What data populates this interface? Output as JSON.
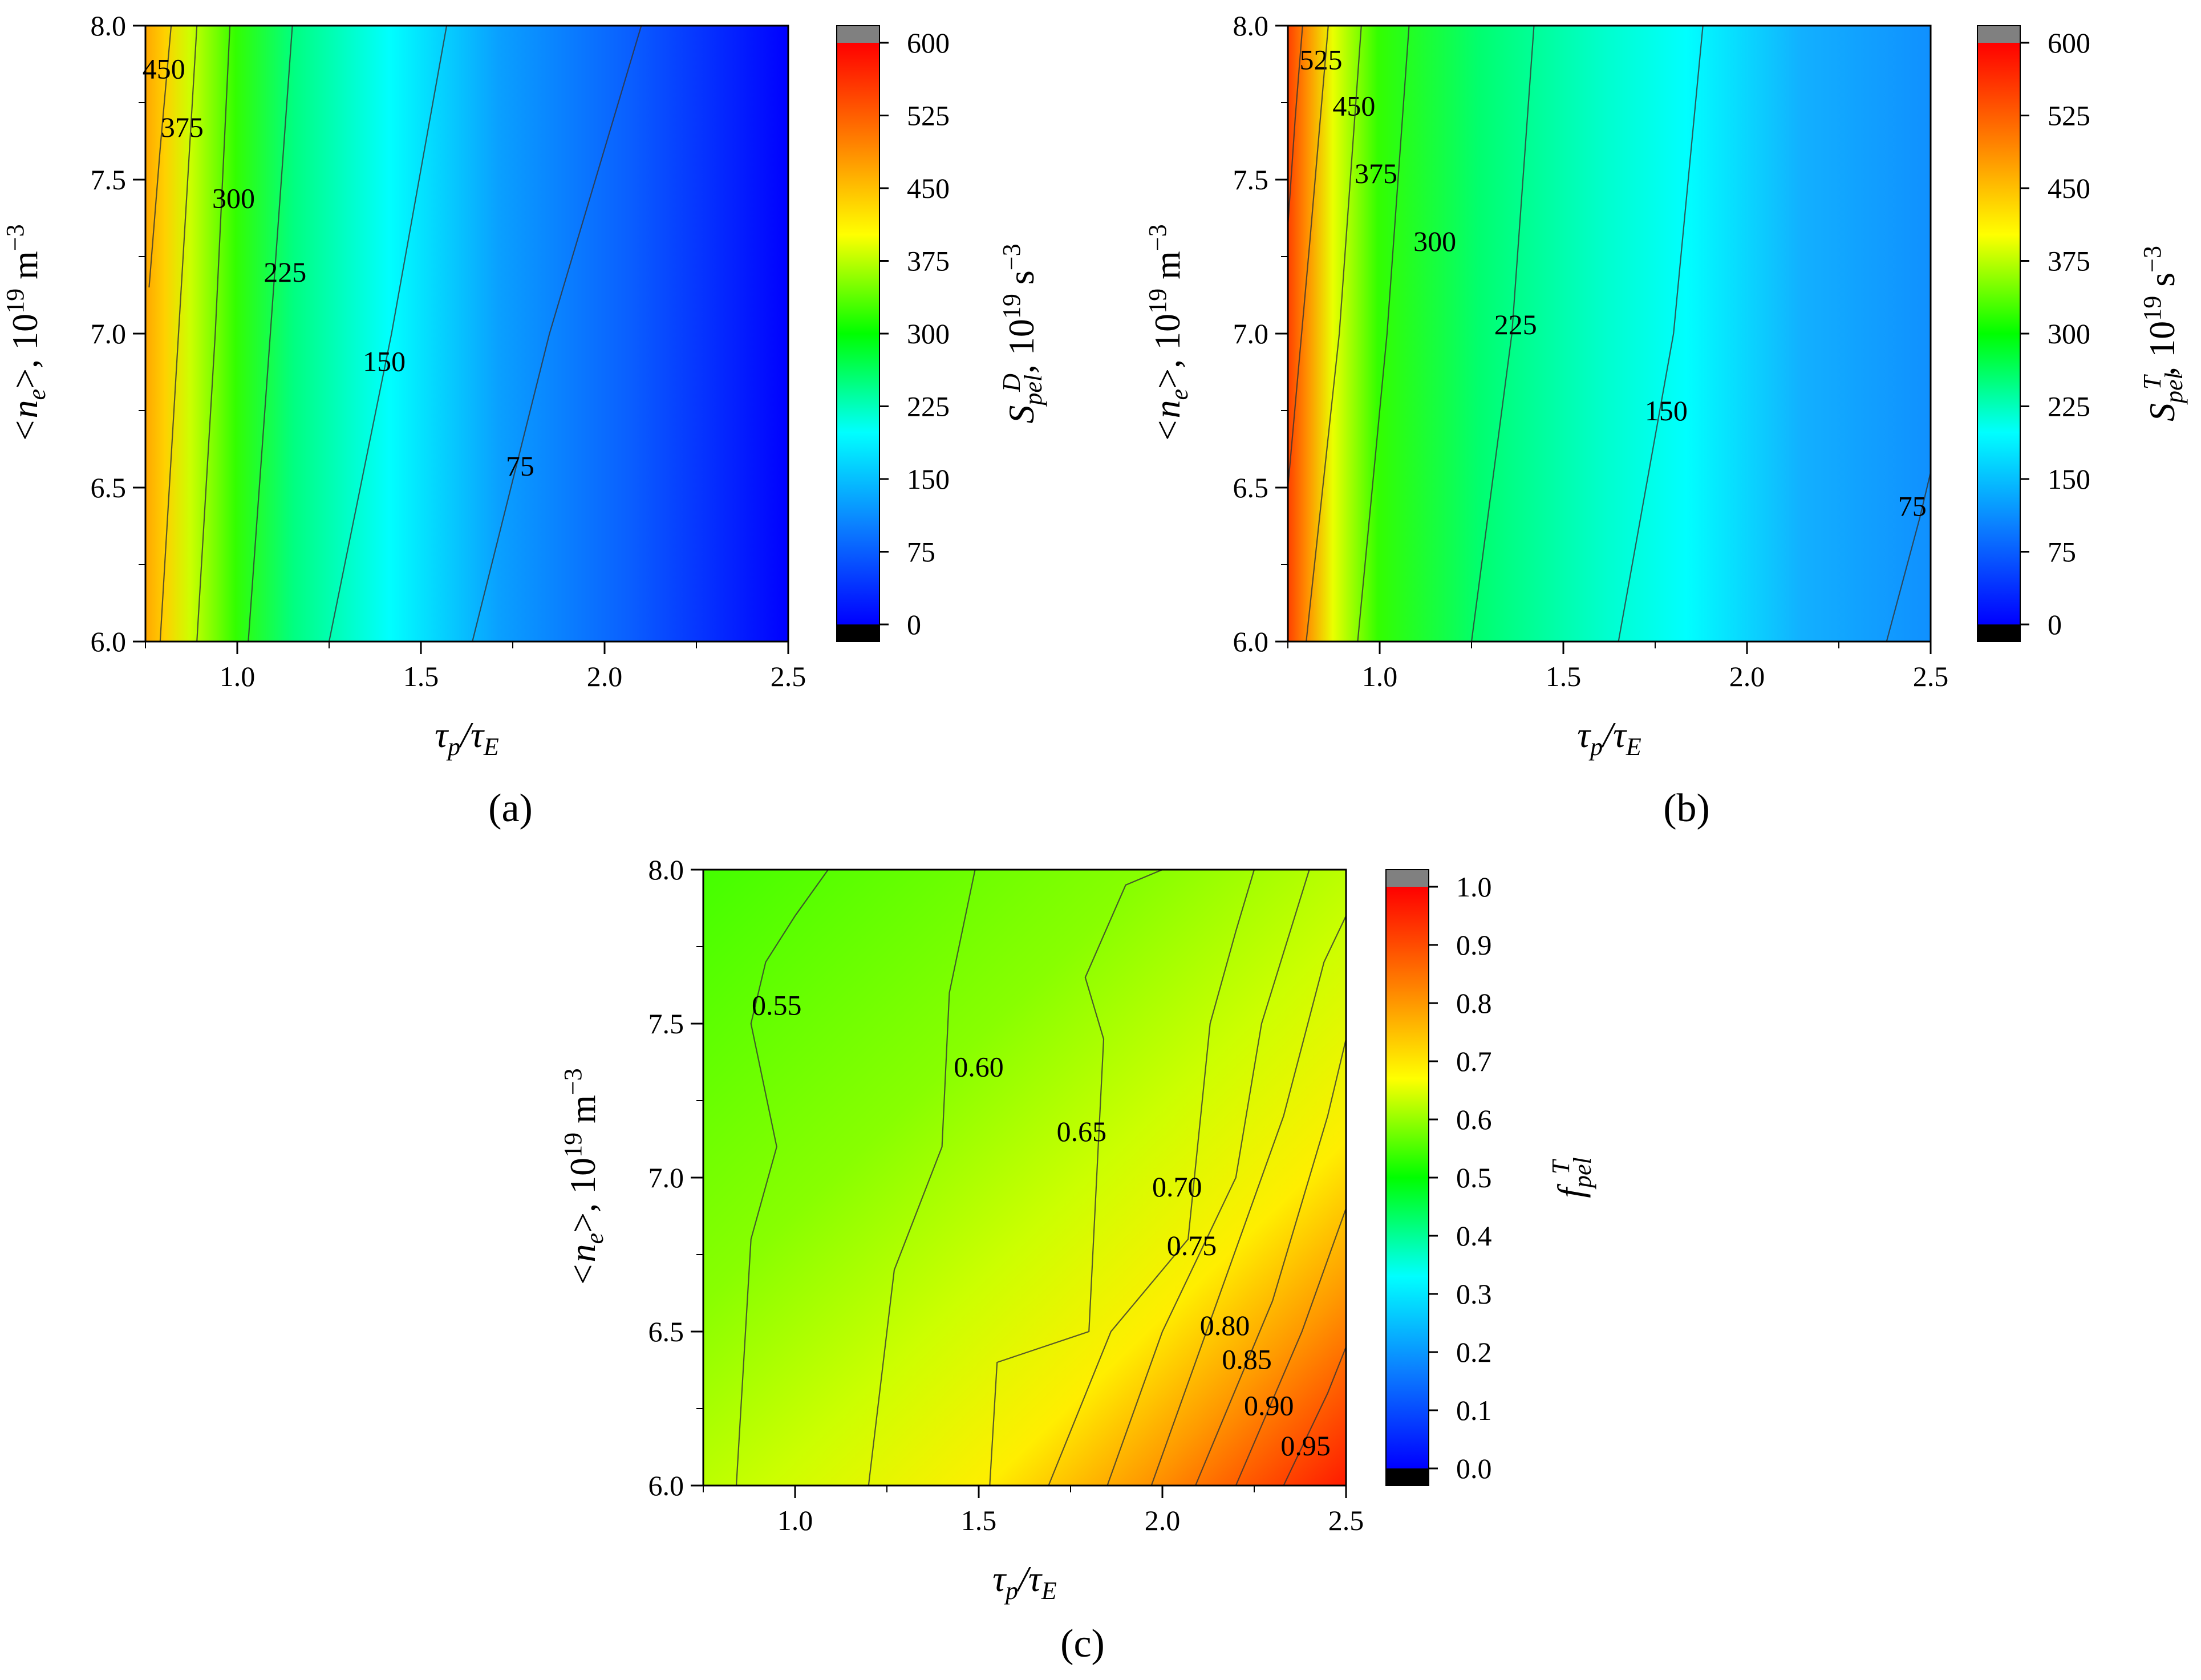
{
  "figure": {
    "panels": [
      "(a)",
      "(b)",
      "(c)"
    ]
  },
  "colormap": [
    "#0000ff",
    "#0b80ff",
    "#00ffff",
    "#00ff00",
    "#ffff00",
    "#ff8000",
    "#ff0000"
  ],
  "chart_data": [
    {
      "panel": "(a)",
      "type": "heatmap",
      "subtype": "filled contour",
      "xlabel_parts": [
        "τ",
        "p",
        "/τ",
        "E"
      ],
      "ylabel_parts": [
        "<n",
        "e",
        ">, 10",
        "19",
        " m",
        "−3"
      ],
      "colorbar_label_parts": [
        "S",
        "pel",
        "D",
        ", 10",
        "19",
        " s",
        "−3"
      ],
      "xlim": [
        0.75,
        2.5
      ],
      "ylim": [
        6.0,
        8.0
      ],
      "x_ticks": [
        "1.0",
        "1.5",
        "2.0",
        "2.5"
      ],
      "x_tick_values": [
        1.0,
        1.5,
        2.0,
        2.5
      ],
      "y_ticks": [
        "6.0",
        "6.5",
        "7.0",
        "7.5",
        "8.0"
      ],
      "y_tick_values": [
        6.0,
        6.5,
        7.0,
        7.5,
        8.0
      ],
      "colorbar_range": [
        0,
        600
      ],
      "colorbar_ticks": [
        "0",
        "75",
        "150",
        "225",
        "300",
        "375",
        "450",
        "525",
        "600"
      ],
      "colorbar_tick_values": [
        0,
        75,
        150,
        225,
        300,
        375,
        450,
        525,
        600
      ],
      "contours": [
        {
          "level": 450,
          "label": "450",
          "points": [
            [
              0.76,
              7.15
            ],
            [
              0.79,
              7.6
            ],
            [
              0.82,
              8.0
            ]
          ],
          "label_at": [
            0.8,
            7.86
          ]
        },
        {
          "level": 375,
          "label": "375",
          "points": [
            [
              0.79,
              6.0
            ],
            [
              0.84,
              7.0
            ],
            [
              0.89,
              8.0
            ]
          ],
          "label_at": [
            0.85,
            7.67
          ]
        },
        {
          "level": 300,
          "label": "300",
          "points": [
            [
              0.89,
              6.0
            ],
            [
              0.94,
              7.0
            ],
            [
              0.98,
              8.0
            ]
          ],
          "label_at": [
            0.99,
            7.44
          ]
        },
        {
          "level": 225,
          "label": "225",
          "points": [
            [
              1.03,
              6.0
            ],
            [
              1.09,
              7.0
            ],
            [
              1.15,
              8.0
            ]
          ],
          "label_at": [
            1.13,
            7.2
          ]
        },
        {
          "level": 150,
          "label": "150",
          "points": [
            [
              1.25,
              6.0
            ],
            [
              1.42,
              7.0
            ],
            [
              1.57,
              8.0
            ]
          ],
          "label_at": [
            1.4,
            6.91
          ]
        },
        {
          "level": 75,
          "label": "75",
          "points": [
            [
              1.64,
              6.0
            ],
            [
              1.85,
              7.0
            ],
            [
              2.1,
              8.0
            ]
          ],
          "label_at": [
            1.77,
            6.57
          ]
        }
      ]
    },
    {
      "panel": "(b)",
      "type": "heatmap",
      "subtype": "filled contour",
      "xlabel_parts": [
        "τ",
        "p",
        "/τ",
        "E"
      ],
      "ylabel_parts": [
        "<n",
        "e",
        ">, 10",
        "19",
        " m",
        "−3"
      ],
      "colorbar_label_parts": [
        "S",
        "pel",
        "T",
        ", 10",
        "19",
        " s",
        "−3"
      ],
      "xlim": [
        0.75,
        2.5
      ],
      "ylim": [
        6.0,
        8.0
      ],
      "x_ticks": [
        "1.0",
        "1.5",
        "2.0",
        "2.5"
      ],
      "x_tick_values": [
        1.0,
        1.5,
        2.0,
        2.5
      ],
      "y_ticks": [
        "6.0",
        "6.5",
        "7.0",
        "7.5",
        "8.0"
      ],
      "y_tick_values": [
        6.0,
        6.5,
        7.0,
        7.5,
        8.0
      ],
      "colorbar_range": [
        0,
        600
      ],
      "colorbar_ticks": [
        "0",
        "75",
        "150",
        "225",
        "300",
        "375",
        "450",
        "525",
        "600"
      ],
      "colorbar_tick_values": [
        0,
        75,
        150,
        225,
        300,
        375,
        450,
        525,
        600
      ],
      "contours": [
        {
          "level": 525,
          "label": "525",
          "points": [
            [
              0.75,
              7.35
            ],
            [
              0.77,
              7.7
            ],
            [
              0.79,
              8.0
            ]
          ],
          "label_at": [
            0.84,
            7.89
          ]
        },
        {
          "level": 450,
          "label": "450",
          "points": [
            [
              0.75,
              6.5
            ],
            [
              0.81,
              7.3
            ],
            [
              0.86,
              8.0
            ]
          ],
          "label_at": [
            0.93,
            7.74
          ]
        },
        {
          "level": 375,
          "label": "375",
          "points": [
            [
              0.8,
              6.0
            ],
            [
              0.89,
              7.0
            ],
            [
              0.95,
              8.0
            ]
          ],
          "label_at": [
            0.99,
            7.52
          ]
        },
        {
          "level": 300,
          "label": "300",
          "points": [
            [
              0.94,
              6.0
            ],
            [
              1.02,
              7.0
            ],
            [
              1.08,
              8.0
            ]
          ],
          "label_at": [
            1.15,
            7.3
          ]
        },
        {
          "level": 225,
          "label": "225",
          "points": [
            [
              1.25,
              6.0
            ],
            [
              1.36,
              7.0
            ],
            [
              1.42,
              8.0
            ]
          ],
          "label_at": [
            1.37,
            7.03
          ]
        },
        {
          "level": 150,
          "label": "150",
          "points": [
            [
              1.65,
              6.0
            ],
            [
              1.8,
              7.0
            ],
            [
              1.88,
              8.0
            ]
          ],
          "label_at": [
            1.78,
            6.75
          ]
        },
        {
          "level": 75,
          "label": "75",
          "points": [
            [
              2.38,
              6.0
            ],
            [
              2.47,
              6.4
            ],
            [
              2.5,
              6.55
            ]
          ],
          "label_at": [
            2.45,
            6.44
          ]
        }
      ]
    },
    {
      "panel": "(c)",
      "type": "heatmap",
      "subtype": "filled contour",
      "xlabel_parts": [
        "τ",
        "p",
        "/τ",
        "E"
      ],
      "ylabel_parts": [
        "<n",
        "e",
        ">, 10",
        "19",
        " m",
        "−3"
      ],
      "colorbar_label_parts": [
        "f",
        "pel",
        "T"
      ],
      "xlim": [
        0.75,
        2.5
      ],
      "ylim": [
        6.0,
        8.0
      ],
      "x_ticks": [
        "1.0",
        "1.5",
        "2.0",
        "2.5"
      ],
      "x_tick_values": [
        1.0,
        1.5,
        2.0,
        2.5
      ],
      "y_ticks": [
        "6.0",
        "6.5",
        "7.0",
        "7.5",
        "8.0"
      ],
      "y_tick_values": [
        6.0,
        6.5,
        7.0,
        7.5,
        8.0
      ],
      "colorbar_range": [
        0.0,
        1.0
      ],
      "colorbar_ticks": [
        "0.0",
        "0.1",
        "0.2",
        "0.3",
        "0.4",
        "0.5",
        "0.6",
        "0.7",
        "0.8",
        "0.9",
        "1.0"
      ],
      "colorbar_tick_values": [
        0.0,
        0.1,
        0.2,
        0.3,
        0.4,
        0.5,
        0.6,
        0.7,
        0.8,
        0.9,
        1.0
      ],
      "contours": [
        {
          "level": 0.55,
          "label": "0.55",
          "points": [
            [
              0.84,
              6.0
            ],
            [
              0.88,
              6.8
            ],
            [
              0.95,
              7.1
            ],
            [
              0.88,
              7.5
            ],
            [
              0.92,
              7.7
            ],
            [
              1.0,
              7.85
            ],
            [
              1.09,
              8.0
            ]
          ],
          "label_at": [
            0.95,
            7.56
          ]
        },
        {
          "level": 0.6,
          "label": "0.60",
          "points": [
            [
              1.2,
              6.0
            ],
            [
              1.27,
              6.7
            ],
            [
              1.4,
              7.1
            ],
            [
              1.42,
              7.6
            ],
            [
              1.49,
              8.0
            ]
          ],
          "label_at": [
            1.5,
            7.36
          ]
        },
        {
          "level": 0.65,
          "label": "0.65",
          "points": [
            [
              1.53,
              6.0
            ],
            [
              1.55,
              6.4
            ],
            [
              1.8,
              6.5
            ],
            [
              1.84,
              7.45
            ],
            [
              1.79,
              7.65
            ],
            [
              1.9,
              7.95
            ],
            [
              2.0,
              8.0
            ]
          ],
          "label_at": [
            1.78,
            7.15
          ]
        },
        {
          "level": 0.7,
          "label": "0.70",
          "points": [
            [
              1.69,
              6.0
            ],
            [
              1.86,
              6.5
            ],
            [
              2.07,
              6.8
            ],
            [
              2.13,
              7.5
            ],
            [
              2.2,
              7.8
            ],
            [
              2.25,
              8.0
            ]
          ],
          "label_at": [
            2.04,
            6.97
          ]
        },
        {
          "level": 0.75,
          "label": "0.75",
          "points": [
            [
              1.85,
              6.0
            ],
            [
              2.0,
              6.5
            ],
            [
              2.2,
              7.0
            ],
            [
              2.27,
              7.5
            ],
            [
              2.4,
              8.0
            ]
          ],
          "label_at": [
            2.08,
            6.78
          ]
        },
        {
          "level": 0.8,
          "label": "0.80",
          "points": [
            [
              1.97,
              6.0
            ],
            [
              2.15,
              6.6
            ],
            [
              2.33,
              7.2
            ],
            [
              2.44,
              7.7
            ],
            [
              2.5,
              7.85
            ]
          ],
          "label_at": [
            2.17,
            6.52
          ]
        },
        {
          "level": 0.85,
          "label": "0.85",
          "points": [
            [
              2.09,
              6.0
            ],
            [
              2.3,
              6.6
            ],
            [
              2.45,
              7.2
            ],
            [
              2.5,
              7.45
            ]
          ],
          "label_at": [
            2.23,
            6.41
          ]
        },
        {
          "level": 0.9,
          "label": "0.90",
          "points": [
            [
              2.2,
              6.0
            ],
            [
              2.38,
              6.5
            ],
            [
              2.5,
              6.9
            ]
          ],
          "label_at": [
            2.29,
            6.26
          ]
        },
        {
          "level": 0.95,
          "label": "0.95",
          "points": [
            [
              2.33,
              6.0
            ],
            [
              2.45,
              6.3
            ],
            [
              2.5,
              6.45
            ]
          ],
          "label_at": [
            2.39,
            6.13
          ]
        }
      ]
    }
  ]
}
